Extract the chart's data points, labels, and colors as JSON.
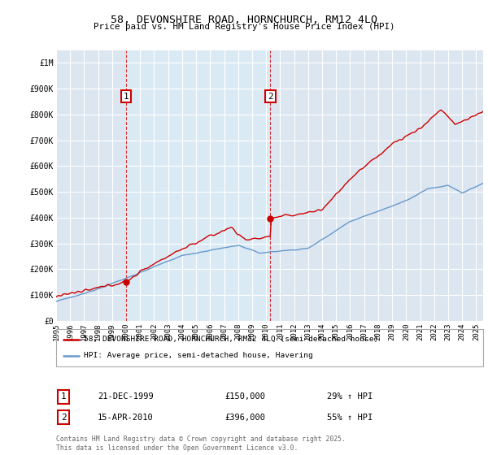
{
  "title": "58, DEVONSHIRE ROAD, HORNCHURCH, RM12 4LQ",
  "subtitle": "Price paid vs. HM Land Registry's House Price Index (HPI)",
  "legend_line1": "58, DEVONSHIRE ROAD, HORNCHURCH, RM12 4LQ (semi-detached house)",
  "legend_line2": "HPI: Average price, semi-detached house, Havering",
  "marker1_date": "21-DEC-1999",
  "marker1_price": 150000,
  "marker1_pricefmt": "£150,000",
  "marker1_label": "29% ↑ HPI",
  "marker1_year": 2000.0,
  "marker2_date": "15-APR-2010",
  "marker2_price": 396000,
  "marker2_pricefmt": "£396,000",
  "marker2_label": "55% ↑ HPI",
  "marker2_year": 2010.3,
  "ylim": [
    0,
    1050000
  ],
  "xlim_start": 1995.0,
  "xlim_end": 2025.5,
  "yticks": [
    0,
    100000,
    200000,
    300000,
    400000,
    500000,
    600000,
    700000,
    800000,
    900000,
    1000000
  ],
  "ytick_labels": [
    "£0",
    "£100K",
    "£200K",
    "£300K",
    "£400K",
    "£500K",
    "£600K",
    "£700K",
    "£800K",
    "£900K",
    "£1M"
  ],
  "red_color": "#cc0000",
  "blue_color": "#6699cc",
  "shade_color": "#daeaf5",
  "background_color": "#dce6f0",
  "grid_color": "#ffffff",
  "footer": "Contains HM Land Registry data © Crown copyright and database right 2025.\nThis data is licensed under the Open Government Licence v3.0.",
  "xticks": [
    1995,
    1996,
    1997,
    1998,
    1999,
    2000,
    2001,
    2002,
    2003,
    2004,
    2005,
    2006,
    2007,
    2008,
    2009,
    2010,
    2011,
    2012,
    2013,
    2014,
    2015,
    2016,
    2017,
    2018,
    2019,
    2020,
    2021,
    2022,
    2023,
    2024,
    2025
  ]
}
